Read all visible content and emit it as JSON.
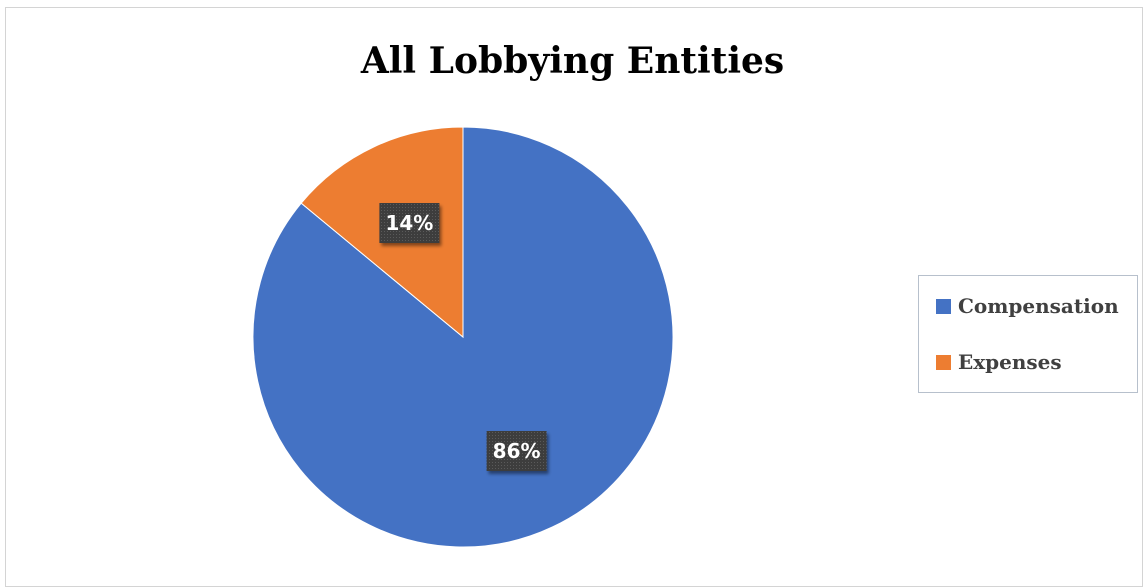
{
  "chart_data": {
    "type": "pie",
    "title": "All Lobbying Entities",
    "categories": [
      "Compensation",
      "Expenses"
    ],
    "values": [
      86,
      14
    ],
    "data_labels": [
      "86%",
      "14%"
    ],
    "colors": [
      "#4472c4",
      "#ed7d31"
    ],
    "legend_position": "right",
    "start_angle": "12 o'clock",
    "direction": "clockwise"
  }
}
